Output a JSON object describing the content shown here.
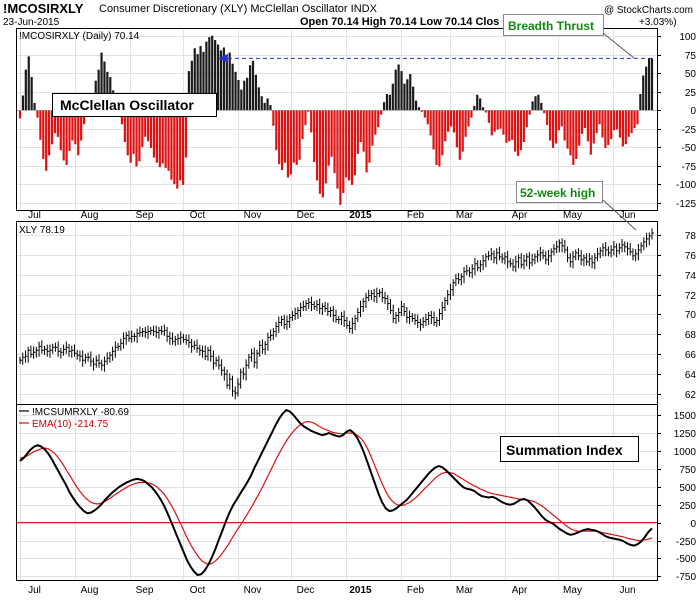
{
  "header": {
    "symbol": "!MCOSIRXLY",
    "description": "Consumer Discretionary (XLY) McClellan Oscillator  INDX",
    "date": "23-Jun-2015",
    "quote": "Open 70.14  High 70.14  Low 70.14  Clos",
    "change_tail": "+3.03%)",
    "watermark": "@ StockCharts.com"
  },
  "annotations": {
    "oscillator": "McClellan Oscillator",
    "breadth_thrust": "Breadth Thrust",
    "high_52w": "52-week high",
    "summation": "Summation Index"
  },
  "x_axis": {
    "labels": [
      "Jul",
      "Aug",
      "Sep",
      "Oct",
      "Nov",
      "Dec",
      "2015",
      "Feb",
      "Mar",
      "Apr",
      "May",
      "Jun"
    ]
  },
  "colors": {
    "up_bar": "#1a1a1a",
    "down_bar": "#dd1111",
    "price": "#000000",
    "summation_line": "#000000",
    "ema_line": "#dd1111",
    "zero_line": "#cc0000",
    "annotation_green": "#118811",
    "thrust_arrow": "#2233cc",
    "grid": "#e2e2e2"
  },
  "chart_data": [
    {
      "type": "bar",
      "name": "McClellan Oscillator",
      "legend": "!MCOSIRXLY (Daily) 70.14",
      "last_value": 70.14,
      "ylim": [
        -135,
        110
      ],
      "yticks": [
        100,
        75,
        50,
        25,
        0,
        -25,
        -50,
        -75,
        -100,
        -125
      ],
      "start": "2014-07-01",
      "end": "2015-06-23",
      "values": [
        -11,
        20,
        55,
        73,
        45,
        10,
        -10,
        -40,
        -66,
        -82,
        -61,
        -46,
        -31,
        -36,
        -54,
        -68,
        -74,
        -55,
        -41,
        -46,
        -61,
        -41,
        -19,
        13,
        22,
        13,
        40,
        55,
        78,
        66,
        52,
        45,
        27,
        12,
        -6,
        -19,
        -43,
        -61,
        -71,
        -59,
        -76,
        -69,
        -50,
        -36,
        -42,
        -51,
        -64,
        -71,
        -77,
        -72,
        -78,
        -82,
        -94,
        -100,
        -106,
        -95,
        -101,
        -64,
        53,
        67,
        84,
        76,
        87,
        79,
        93,
        99,
        101,
        95,
        89,
        81,
        85,
        71,
        78,
        63,
        52,
        41,
        28,
        40,
        44,
        61,
        67,
        48,
        31,
        19,
        10,
        16,
        7,
        -21,
        -54,
        -73,
        -81,
        -71,
        -91,
        -87,
        -71,
        -74,
        -67,
        -39,
        -20,
        -2,
        -30,
        -70,
        -95,
        -113,
        -118,
        -99,
        -75,
        -63,
        -85,
        -106,
        -128,
        -112,
        -91,
        -95,
        -101,
        -88,
        -59,
        -43,
        -56,
        -84,
        -71,
        -48,
        -33,
        -23,
        -6,
        11,
        22,
        21,
        36,
        55,
        62,
        53,
        36,
        42,
        49,
        32,
        13,
        4,
        -2,
        -10,
        -19,
        -34,
        -53,
        -74,
        -76,
        -61,
        -42,
        -29,
        -22,
        -30,
        -50,
        -67,
        -56,
        -36,
        -22,
        -10,
        6,
        21,
        16,
        4,
        -3,
        -17,
        -34,
        -29,
        -26,
        -25,
        -33,
        -44,
        -42,
        -40,
        -56,
        -62,
        -54,
        -43,
        -23,
        -6,
        12,
        19,
        21,
        10,
        -4,
        -20,
        -41,
        -51,
        -45,
        -27,
        -22,
        -41,
        -52,
        -61,
        -74,
        -66,
        -48,
        -32,
        -24,
        -42,
        -60,
        -45,
        -31,
        -19,
        -37,
        -51,
        -47,
        -39,
        -27,
        -26,
        -37,
        -49,
        -46,
        -36,
        -31,
        -24,
        -19,
        22,
        47,
        59,
        70,
        70.14
      ]
    },
    {
      "type": "line",
      "name": "XLY",
      "legend": "XLY 78.19",
      "last_value": 78.19,
      "ylim": [
        61,
        79.3
      ],
      "yticks": [
        62,
        64,
        66,
        68,
        70,
        72,
        74,
        76,
        78
      ],
      "start": "2014-07-01",
      "end": "2015-06-23",
      "values": [
        65.4,
        65.7,
        65.8,
        66.4,
        66.0,
        66.2,
        66.4,
        66.8,
        66.4,
        66.5,
        66.3,
        66.4,
        66.7,
        66.7,
        66.3,
        66.2,
        66.5,
        66.7,
        66.3,
        66.4,
        66.1,
        65.9,
        65.8,
        65.4,
        65.7,
        65.7,
        65.3,
        65.0,
        65.4,
        65.1,
        64.9,
        65.3,
        65.6,
        65.9,
        66.3,
        66.7,
        66.8,
        67.1,
        67.6,
        67.9,
        67.6,
        67.8,
        67.8,
        68.1,
        68.2,
        68.3,
        68.2,
        68.3,
        68.4,
        68.3,
        68.2,
        68.4,
        68.3,
        68.4,
        67.8,
        67.6,
        67.3,
        67.5,
        67.6,
        67.7,
        67.5,
        67.4,
        67.2,
        66.8,
        66.9,
        66.6,
        66.4,
        66.3,
        65.8,
        66.4,
        65.8,
        65.1,
        65.4,
        64.9,
        64.4,
        64.0,
        62.9,
        63.5,
        62.3,
        62.1,
        63.0,
        64.2,
        64.0,
        64.9,
        65.7,
        66.1,
        65.2,
        66.1,
        66.9,
        66.5,
        67.0,
        67.7,
        67.9,
        68.3,
        68.8,
        69.2,
        69.5,
        69.0,
        69.3,
        69.7,
        69.9,
        70.1,
        70.4,
        70.7,
        70.8,
        71.1,
        71.2,
        71.0,
        70.8,
        71.0,
        70.6,
        70.8,
        70.6,
        70.3,
        70.4,
        69.9,
        69.5,
        69.5,
        69.8,
        69.4,
        68.9,
        68.6,
        69.1,
        69.6,
        70.2,
        70.8,
        71.3,
        71.7,
        71.9,
        72.1,
        71.8,
        72.1,
        72.2,
        71.7,
        71.6,
        71.1,
        70.4,
        69.6,
        69.9,
        70.2,
        70.8,
        70.3,
        69.7,
        69.8,
        69.6,
        69.4,
        69.2,
        69.0,
        69.3,
        69.5,
        69.9,
        69.7,
        69.2,
        69.4,
        70.1,
        70.7,
        71.4,
        72.0,
        72.5,
        73.2,
        73.6,
        73.5,
        73.8,
        74.3,
        74.4,
        74.2,
        74.6,
        75.1,
        74.7,
        75.0,
        75.4,
        75.8,
        75.9,
        76.1,
        75.7,
        76.2,
        75.8,
        75.6,
        75.8,
        75.3,
        75.1,
        74.8,
        75.3,
        75.7,
        75.0,
        75.4,
        75.8,
        75.2,
        75.5,
        75.8,
        76.0,
        76.2,
        75.9,
        75.5,
        75.9,
        76.3,
        76.6,
        76.8,
        77.2,
        76.9,
        76.5,
        75.7,
        75.3,
        75.8,
        76.2,
        75.9,
        75.5,
        75.7,
        75.3,
        75.6,
        75.2,
        75.7,
        76.1,
        76.4,
        76.7,
        76.5,
        76.2,
        76.5,
        76.8,
        76.4,
        76.7,
        77.0,
        76.8,
        76.6,
        76.3,
        75.9,
        76.1,
        76.5,
        76.9,
        77.3,
        77.6,
        77.9,
        78.19
      ]
    },
    {
      "type": "line",
      "name": "Summation Index",
      "legend": "!MCSUMRXLY -80.69",
      "last_value": -80.69,
      "ylim": [
        -800,
        1640
      ],
      "yticks": [
        1500,
        1250,
        1000,
        750,
        500,
        250,
        0,
        -250,
        -500,
        -750
      ],
      "start": "2014-07-01",
      "end": "2015-06-23",
      "values": [
        860,
        900,
        960,
        1020,
        1060,
        1080,
        1060,
        1020,
        960,
        880,
        790,
        700,
        610,
        520,
        420,
        340,
        270,
        210,
        160,
        130,
        140,
        170,
        210,
        260,
        320,
        370,
        420,
        460,
        500,
        530,
        560,
        580,
        600,
        610,
        600,
        580,
        540,
        500,
        440,
        370,
        290,
        190,
        80,
        -40,
        -160,
        -280,
        -400,
        -520,
        -610,
        -680,
        -730,
        -720,
        -670,
        -590,
        -490,
        -370,
        -240,
        -110,
        20,
        140,
        240,
        320,
        400,
        480,
        560,
        650,
        760,
        860,
        960,
        1060,
        1160,
        1260,
        1360,
        1450,
        1520,
        1570,
        1550,
        1500,
        1440,
        1380,
        1340,
        1310,
        1280,
        1260,
        1240,
        1220,
        1230,
        1250,
        1230,
        1210,
        1200,
        1220,
        1270,
        1290,
        1250,
        1180,
        1080,
        960,
        820,
        680,
        540,
        400,
        280,
        200,
        160,
        170,
        200,
        240,
        280,
        320,
        380,
        440,
        500,
        560,
        620,
        680,
        730,
        770,
        790,
        770,
        730,
        680,
        630,
        580,
        530,
        490,
        470,
        460,
        440,
        400,
        370,
        360,
        350,
        360,
        340,
        310,
        280,
        260,
        250,
        260,
        290,
        320,
        330,
        310,
        260,
        210,
        150,
        90,
        40,
        10,
        -10,
        -50,
        -90,
        -120,
        -150,
        -170,
        -160,
        -140,
        -120,
        -100,
        -90,
        -100,
        -110,
        -130,
        -160,
        -190,
        -210,
        -220,
        -230,
        -240,
        -260,
        -290,
        -310,
        -320,
        -300,
        -260,
        -200,
        -130,
        -80.69
      ]
    },
    {
      "type": "line",
      "name": "EMA(10)",
      "legend": "EMA(10) -214.75",
      "last_value": -214.75,
      "start": "2014-07-01",
      "end": "2015-06-23",
      "values": [
        900,
        910,
        930,
        960,
        990,
        1010,
        1030,
        1040,
        1030,
        1000,
        960,
        900,
        830,
        750,
        670,
        590,
        510,
        440,
        380,
        330,
        290,
        270,
        260,
        270,
        290,
        320,
        350,
        390,
        420,
        450,
        480,
        510,
        530,
        550,
        560,
        560,
        560,
        550,
        530,
        500,
        450,
        400,
        330,
        250,
        160,
        60,
        -40,
        -150,
        -250,
        -340,
        -420,
        -490,
        -540,
        -570,
        -580,
        -560,
        -520,
        -470,
        -400,
        -330,
        -250,
        -170,
        -90,
        -20,
        60,
        140,
        220,
        310,
        400,
        490,
        590,
        690,
        790,
        890,
        980,
        1070,
        1150,
        1220,
        1280,
        1330,
        1370,
        1400,
        1410,
        1400,
        1380,
        1350,
        1320,
        1300,
        1280,
        1260,
        1250,
        1240,
        1240,
        1250,
        1250,
        1240,
        1220,
        1180,
        1120,
        1030,
        920,
        800,
        680,
        560,
        450,
        360,
        300,
        260,
        240,
        240,
        260,
        280,
        320,
        360,
        410,
        460,
        510,
        560,
        610,
        650,
        680,
        700,
        700,
        690,
        670,
        640,
        610,
        580,
        550,
        520,
        500,
        470,
        450,
        430,
        410,
        400,
        390,
        380,
        370,
        360,
        350,
        340,
        330,
        320,
        320,
        310,
        300,
        280,
        250,
        220,
        180,
        140,
        100,
        60,
        20,
        -20,
        -60,
        -90,
        -110,
        -120,
        -120,
        -120,
        -120,
        -120,
        -120,
        -130,
        -140,
        -150,
        -160,
        -170,
        -180,
        -190,
        -200,
        -220,
        -230,
        -240,
        -250,
        -250,
        -240,
        -230,
        -214.75
      ]
    }
  ]
}
